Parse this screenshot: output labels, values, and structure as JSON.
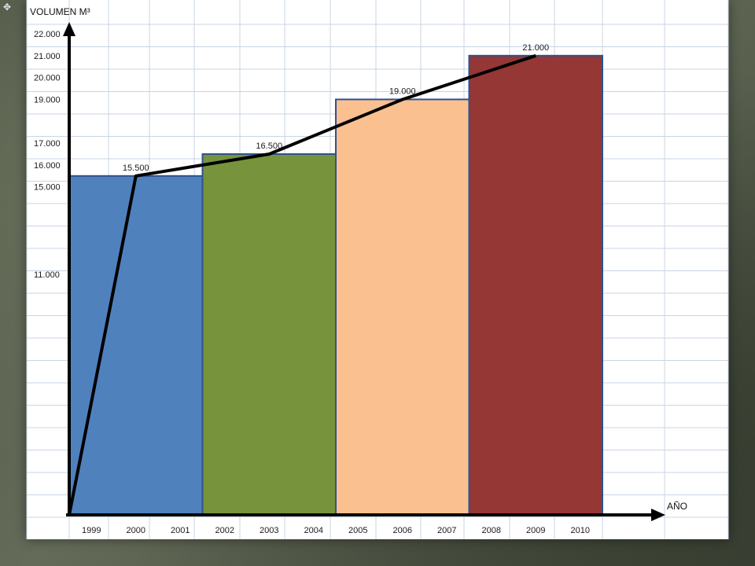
{
  "icons": {
    "corner": "cursor-icon"
  },
  "colors": {
    "background": "#5b6250",
    "sheet": "#ffffff",
    "gridline": "#c9d4e3",
    "bar_outline": "#2f528f",
    "axis": "#000000",
    "trend_line": "#000000"
  },
  "chart_data": {
    "type": "bar",
    "title": "",
    "ylabel": "VOLUMEN M³",
    "xlabel": "AÑO",
    "ylim": [
      0,
      22000
    ],
    "grid": true,
    "y_ticks": [
      "11.000",
      "15.000",
      "16.000",
      "17.000",
      "19.000",
      "20.000",
      "21.000",
      "22.000"
    ],
    "y_tick_values": [
      11000,
      15000,
      16000,
      17000,
      19000,
      20000,
      21000,
      22000
    ],
    "x_ticks": [
      "1999",
      "2000",
      "2001",
      "2002",
      "2003",
      "2004",
      "2005",
      "2006",
      "2007",
      "2008",
      "2009",
      "2010"
    ],
    "bars": [
      {
        "from": "1999",
        "to": "2001",
        "value": 15500,
        "label": "15.500",
        "color": "#4f81bd"
      },
      {
        "from": "2002",
        "to": "2004",
        "value": 16500,
        "label": "16.500",
        "color": "#77933c"
      },
      {
        "from": "2005",
        "to": "2007",
        "value": 19000,
        "label": "19.000",
        "color": "#fac090"
      },
      {
        "from": "2008",
        "to": "2010",
        "value": 21000,
        "label": "21.000",
        "color": "#953735"
      }
    ],
    "trend_line": [
      {
        "x": "1999",
        "y": 0
      },
      {
        "x": "2000",
        "y": 15500
      },
      {
        "x": "2003",
        "y": 16500
      },
      {
        "x": "2006",
        "y": 19000
      },
      {
        "x": "2009",
        "y": 21000
      }
    ]
  }
}
